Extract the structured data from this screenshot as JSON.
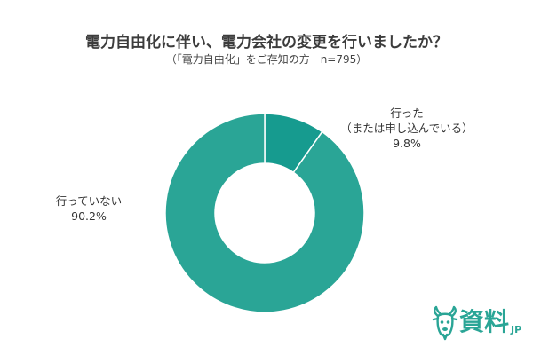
{
  "chart_data": {
    "type": "pie",
    "donut": true,
    "title": "電力自由化に伴い、電力会社の変更を行いましたか？",
    "subtitle": "（「電力自由化」をご存知の方　n=795）",
    "start": "top",
    "direction": "clockwise",
    "legend": "none",
    "slices": [
      {
        "label_lines": [
          "行った",
          "（または申し込んでいる）"
        ],
        "value": 9.8,
        "value_label": "9.8%",
        "color": "#169b8f"
      },
      {
        "label_lines": [
          "行っていない"
        ],
        "value": 90.2,
        "value_label": "90.2%",
        "color": "#2aa596"
      }
    ]
  },
  "logo": {
    "main": "資料",
    "suffix": "JP",
    "icon": "goat-icon",
    "color": "#2aa596"
  }
}
